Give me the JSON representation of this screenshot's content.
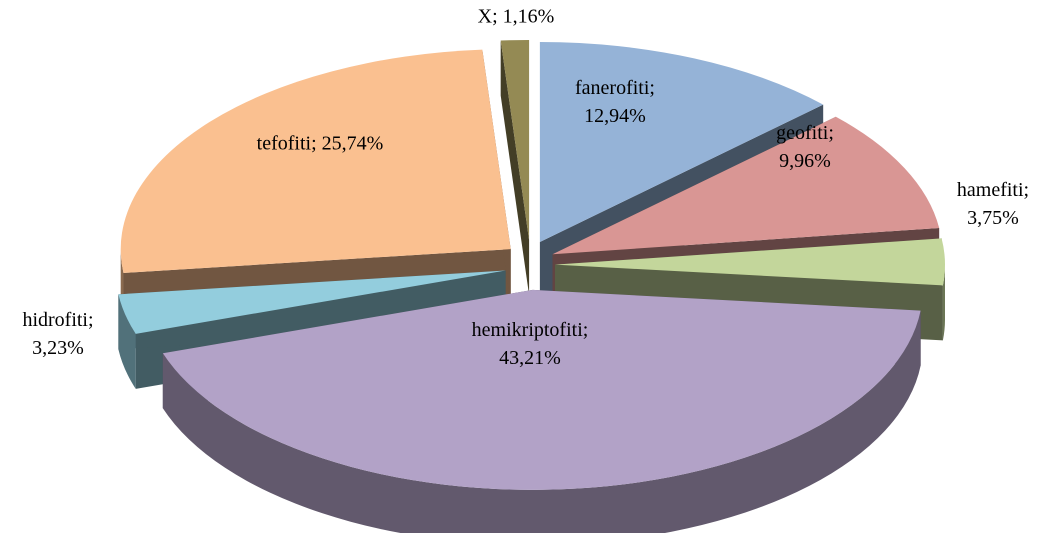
{
  "chart_data": {
    "type": "pie3d",
    "values": [
      12.94,
      9.96,
      3.75,
      43.21,
      3.23,
      25.74,
      1.16
    ],
    "value_labels": [
      "fanerofiti; 12,94%",
      "geofiti; 9,96%",
      "hamefiti; 3,75%",
      "hemikriptofiti; 43,21%",
      "hidrofiti; 3,23%",
      "tefofiti; 25,74%",
      "X; 1,16%"
    ],
    "colors": [
      "#95b3d7",
      "#d99694",
      "#c3d69b",
      "#b2a2c7",
      "#93cddd",
      "#fac090",
      "#948a54"
    ]
  }
}
